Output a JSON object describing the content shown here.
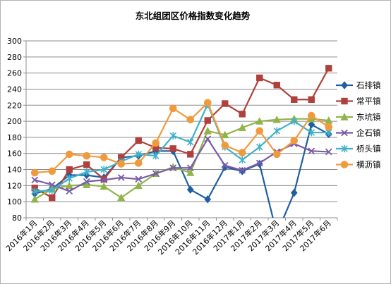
{
  "chart_data": {
    "type": "line",
    "title": "东北组团区价格指数变化趋势",
    "xlabel": "",
    "ylabel": "",
    "ylim": [
      80,
      300
    ],
    "y_step": 20,
    "grid": true,
    "legend_position": "right",
    "categories": [
      "2016年1月",
      "2016年2月",
      "2016年3月",
      "2016年4月",
      "2016年5月",
      "2016年6月",
      "2016年7月",
      "2016年8月",
      "2016年9月",
      "2016年10月",
      "2016年11月",
      "2016年12月",
      "2017年1月",
      "2017年2月",
      "2017年3月",
      "2017年4月",
      "2017年5月",
      "2017年6月"
    ],
    "series": [
      {
        "name": "石排镇",
        "color": "#1f5fa0",
        "marker": "diamond",
        "values": [
          110,
          116,
          133,
          133,
          130,
          155,
          157,
          163,
          163,
          115,
          103,
          143,
          138,
          147,
          60,
          111,
          196,
          184
        ]
      },
      {
        "name": "常平镇",
        "color": "#b0403c",
        "marker": "square",
        "values": [
          117,
          105,
          140,
          146,
          128,
          155,
          176,
          167,
          166,
          159,
          201,
          222,
          209,
          254,
          245,
          227,
          227,
          266
        ]
      },
      {
        "name": "东坑镇",
        "color": "#8fb548",
        "marker": "triangle",
        "values": [
          103,
          116,
          120,
          121,
          119,
          105,
          120,
          135,
          143,
          136,
          188,
          183,
          192,
          200,
          202,
          203,
          203,
          201
        ]
      },
      {
        "name": "企石镇",
        "color": "#7a5ba8",
        "marker": "x",
        "values": [
          127,
          121,
          113,
          125,
          127,
          130,
          128,
          135,
          142,
          142,
          178,
          145,
          139,
          148,
          162,
          172,
          163,
          162
        ]
      },
      {
        "name": "桥头镇",
        "color": "#3fb1c9",
        "marker": "star",
        "values": [
          113,
          114,
          129,
          137,
          140,
          150,
          159,
          157,
          182,
          174,
          221,
          168,
          152,
          168,
          188,
          200,
          186,
          186
        ]
      },
      {
        "name": "横沥镇",
        "color": "#f09a3e",
        "marker": "circle",
        "values": [
          136,
          138,
          159,
          157,
          155,
          147,
          148,
          173,
          216,
          202,
          223,
          170,
          161,
          188,
          159,
          176,
          207,
          193
        ]
      }
    ]
  }
}
